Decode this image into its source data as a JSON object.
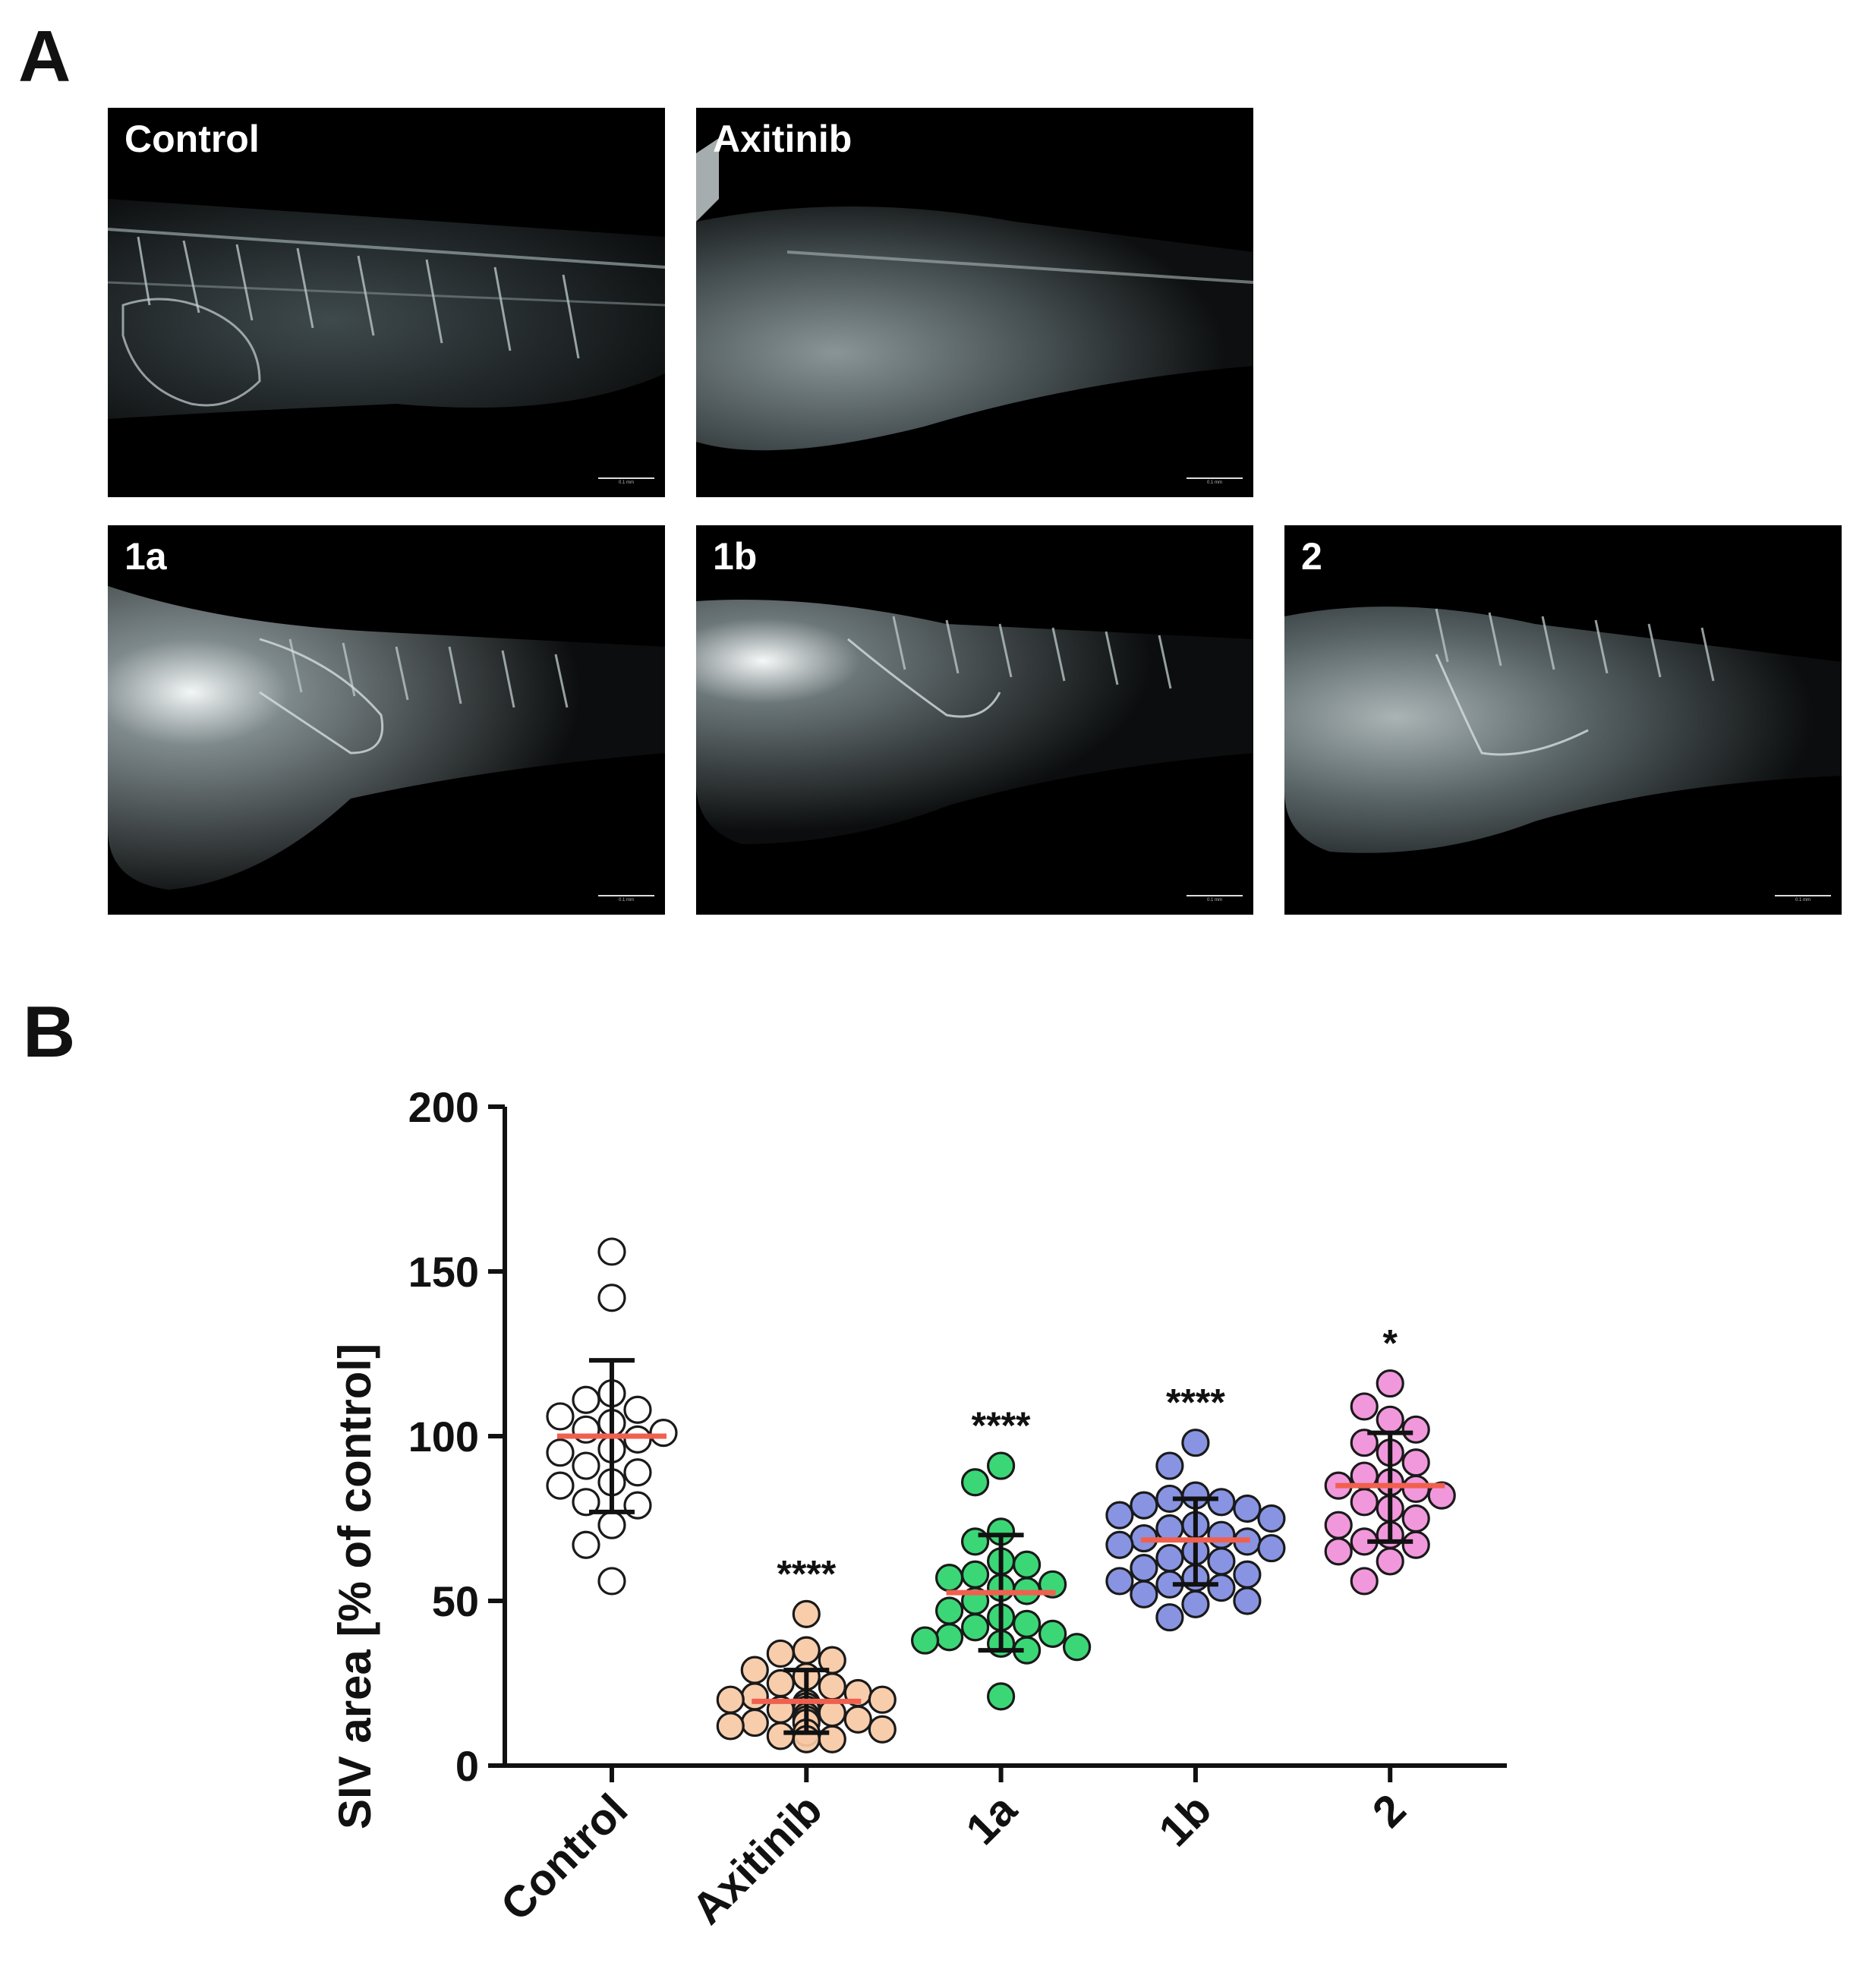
{
  "panelA": {
    "letter": "A",
    "images": [
      {
        "label": "Control",
        "variant": "control",
        "scale_label": "0.1 mm"
      },
      {
        "label": "Axitinib",
        "variant": "axitinib",
        "scale_label": "0.1 mm"
      },
      {
        "label": "1a",
        "variant": "1a",
        "scale_label": "0.1 mm"
      },
      {
        "label": "1b",
        "variant": "1b",
        "scale_label": "0.1 mm"
      },
      {
        "label": "2",
        "variant": "2",
        "scale_label": "0.1 mm"
      }
    ]
  },
  "panelB": {
    "letter": "B",
    "chart_data": {
      "type": "scatter",
      "ylabel": "SIV area [% of control]",
      "xlabel": "",
      "ylim": [
        0,
        200
      ],
      "yticks": [
        0,
        50,
        100,
        150,
        200
      ],
      "categories": [
        "Control",
        "Axitinib",
        "1a",
        "1b",
        "2"
      ],
      "series": [
        {
          "category": "Control",
          "fill": "#ffffff",
          "mean": 100,
          "sd_low": 77,
          "sd_high": 123,
          "significance": "",
          "values": [
            156,
            142,
            113,
            111,
            108,
            106,
            104,
            102,
            101,
            99,
            96,
            95,
            91,
            89,
            86,
            85,
            80,
            79,
            73,
            67,
            56
          ]
        },
        {
          "category": "Axitinib",
          "fill": "#f7c9a5",
          "mean": 19.5,
          "sd_low": 10,
          "sd_high": 29,
          "significance": "****",
          "values": [
            46,
            35,
            34,
            32,
            29,
            27,
            25,
            24,
            22,
            21,
            20,
            20,
            19,
            18,
            18,
            17,
            17,
            16,
            15,
            14,
            14,
            13,
            13,
            12,
            11,
            10,
            9,
            8,
            8
          ]
        },
        {
          "category": "1a",
          "fill": "#2ad46a",
          "mean": 52.5,
          "sd_low": 35,
          "sd_high": 70,
          "significance": "****",
          "values": [
            91,
            86,
            71,
            68,
            62,
            61,
            58,
            57,
            55,
            54,
            53,
            50,
            47,
            45,
            43,
            42,
            40,
            39,
            38,
            37,
            36,
            35,
            21
          ]
        },
        {
          "category": "1b",
          "fill": "#7e8be0",
          "mean": 68.5,
          "sd_low": 55,
          "sd_high": 81,
          "significance": "****",
          "values": [
            98,
            91,
            82,
            81,
            80,
            79,
            78,
            76,
            75,
            73,
            72,
            70,
            69,
            68,
            67,
            66,
            65,
            63,
            62,
            60,
            58,
            57,
            56,
            55,
            54,
            52,
            50,
            49,
            45
          ]
        },
        {
          "category": "2",
          "fill": "#f08fd9",
          "mean": 85,
          "sd_low": 68,
          "sd_high": 101,
          "significance": "*",
          "values": [
            116,
            109,
            105,
            102,
            98,
            95,
            92,
            88,
            86,
            85,
            84,
            82,
            80,
            78,
            75,
            73,
            70,
            68,
            67,
            65,
            62,
            56
          ]
        }
      ],
      "grid": false,
      "legend": "none"
    }
  },
  "colors": {
    "mean_line": "#f0604f",
    "axis": "#111111",
    "micro_bg": "#000000"
  }
}
